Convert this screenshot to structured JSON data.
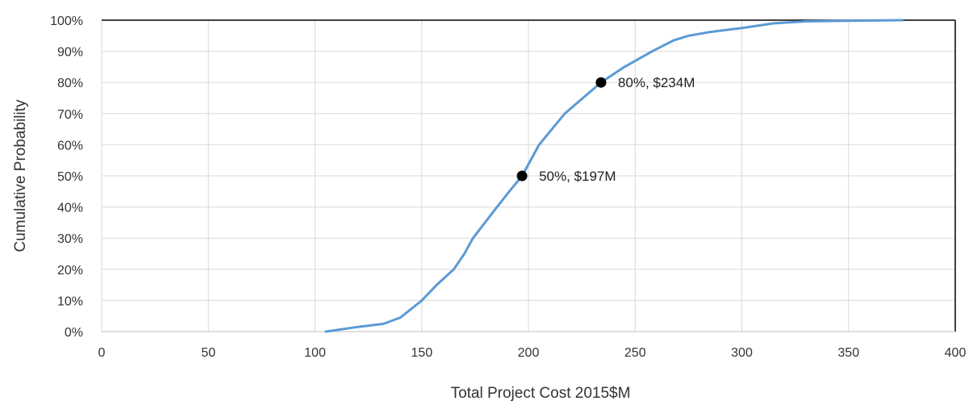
{
  "chart_data": {
    "type": "line",
    "xlabel": "Total Project Cost 2015$M",
    "ylabel": "Cumulative Probability",
    "xlim": [
      0,
      400
    ],
    "ylim": [
      0,
      1
    ],
    "x_ticks": [
      0,
      50,
      100,
      150,
      200,
      250,
      300,
      350,
      400
    ],
    "y_ticks": [
      0,
      0.1,
      0.2,
      0.3,
      0.4,
      0.5,
      0.6,
      0.7,
      0.8,
      0.9,
      1.0
    ],
    "x_tick_labels": [
      "0",
      "50",
      "100",
      "150",
      "200",
      "250",
      "300",
      "350",
      "400"
    ],
    "y_tick_labels": [
      "0%",
      "10%",
      "20%",
      "30%",
      "40%",
      "50%",
      "60%",
      "70%",
      "80%",
      "90%",
      "100%"
    ],
    "grid": true,
    "series": [
      {
        "color": "#5b9bd5",
        "points": [
          [
            105,
            0.0
          ],
          [
            120,
            0.015
          ],
          [
            132,
            0.025
          ],
          [
            140,
            0.045
          ],
          [
            150,
            0.1
          ],
          [
            157,
            0.15
          ],
          [
            165,
            0.2
          ],
          [
            170,
            0.25
          ],
          [
            174,
            0.3
          ],
          [
            183,
            0.38
          ],
          [
            191,
            0.45
          ],
          [
            197,
            0.5
          ],
          [
            205,
            0.6
          ],
          [
            217,
            0.7
          ],
          [
            234,
            0.8
          ],
          [
            245,
            0.85
          ],
          [
            258,
            0.9
          ],
          [
            268,
            0.935
          ],
          [
            275,
            0.95
          ],
          [
            285,
            0.962
          ],
          [
            300,
            0.975
          ],
          [
            315,
            0.99
          ],
          [
            330,
            0.996
          ],
          [
            350,
            0.998
          ],
          [
            375,
            1.0
          ]
        ]
      }
    ],
    "annotations": [
      {
        "x": 197,
        "y": 0.5,
        "label": "50%, $197M"
      },
      {
        "x": 234,
        "y": 0.8,
        "label": "80%, $234M"
      }
    ]
  }
}
